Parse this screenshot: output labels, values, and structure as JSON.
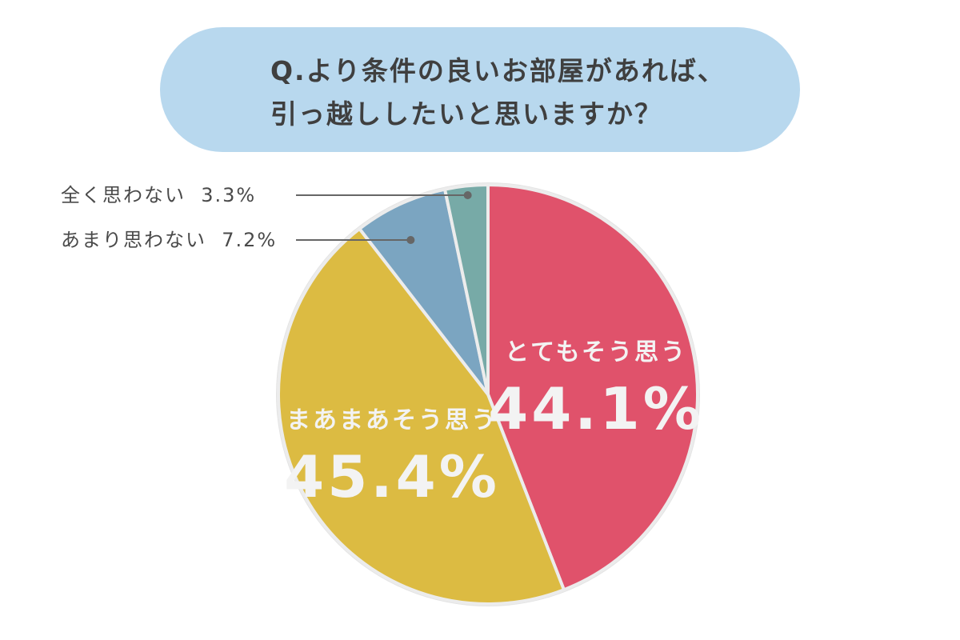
{
  "title": {
    "line1": "Q.より条件の良いお部屋があれば、",
    "line2": "引っ越ししたいと思いますか？"
  },
  "chart_data": {
    "type": "pie",
    "title": "Q.より条件の良いお部屋があれば、引っ越ししたいと思いますか？",
    "slices": [
      {
        "label": "とてもそう思う",
        "value": 44.1,
        "value_label": "44.1%",
        "color": "#e0526b"
      },
      {
        "label": "まあまあそう思う",
        "value": 45.4,
        "value_label": "45.4%",
        "color": "#dcbb42"
      },
      {
        "label": "あまり思わない",
        "value": 7.2,
        "value_label": "7.2%",
        "color": "#7ba5c1"
      },
      {
        "label": "全く思わない",
        "value": 3.3,
        "value_label": "3.3%",
        "color": "#77aaa7"
      }
    ],
    "start": "12 o'clock",
    "direction": "clockwise",
    "callouts": [
      {
        "slice": "全く思わない",
        "text": "全く思わない  3.3%"
      },
      {
        "slice": "あまり思わない",
        "text": "あまり思わない  7.2%"
      }
    ]
  },
  "colors": {
    "title_background": "#b8d8ee",
    "pie_border": "#e4e4e4",
    "slice_separator": "#ececec",
    "inside_label": "#f3f3f3",
    "callout_text": "#4a4a4a",
    "leader_line": "#666666"
  }
}
